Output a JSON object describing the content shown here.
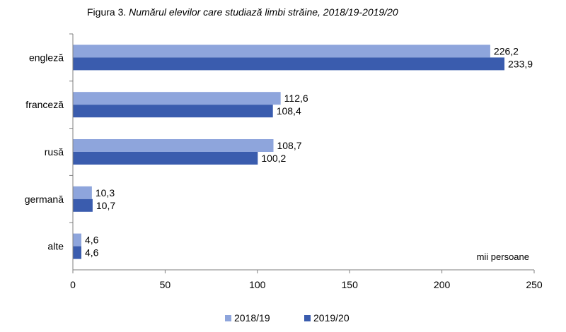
{
  "title_prefix": "Figura 3.",
  "title_main": "Numărul elevilor care studiază limbi străine, 2018/19-2019/20",
  "chart_data": {
    "type": "bar",
    "orientation": "horizontal",
    "categories": [
      "engleză",
      "franceză",
      "rusă",
      "germană",
      "alte"
    ],
    "series": [
      {
        "name": "2018/19",
        "values": [
          226.2,
          112.6,
          108.7,
          10.3,
          4.6
        ],
        "color": "#8ea5dc"
      },
      {
        "name": "2019/20",
        "values": [
          233.9,
          108.4,
          100.2,
          10.7,
          4.6
        ],
        "color": "#3a5cae"
      }
    ],
    "value_labels": [
      [
        "226,2",
        "112,6",
        "108,7",
        "10,3",
        "4,6"
      ],
      [
        "233,9",
        "108,4",
        "100,2",
        "10,7",
        "4,6"
      ]
    ],
    "xlim": [
      0,
      250
    ],
    "xticks": [
      0,
      50,
      100,
      150,
      200,
      250
    ],
    "unit_label": "mii persoane",
    "grid": false,
    "legend_position": "bottom"
  }
}
